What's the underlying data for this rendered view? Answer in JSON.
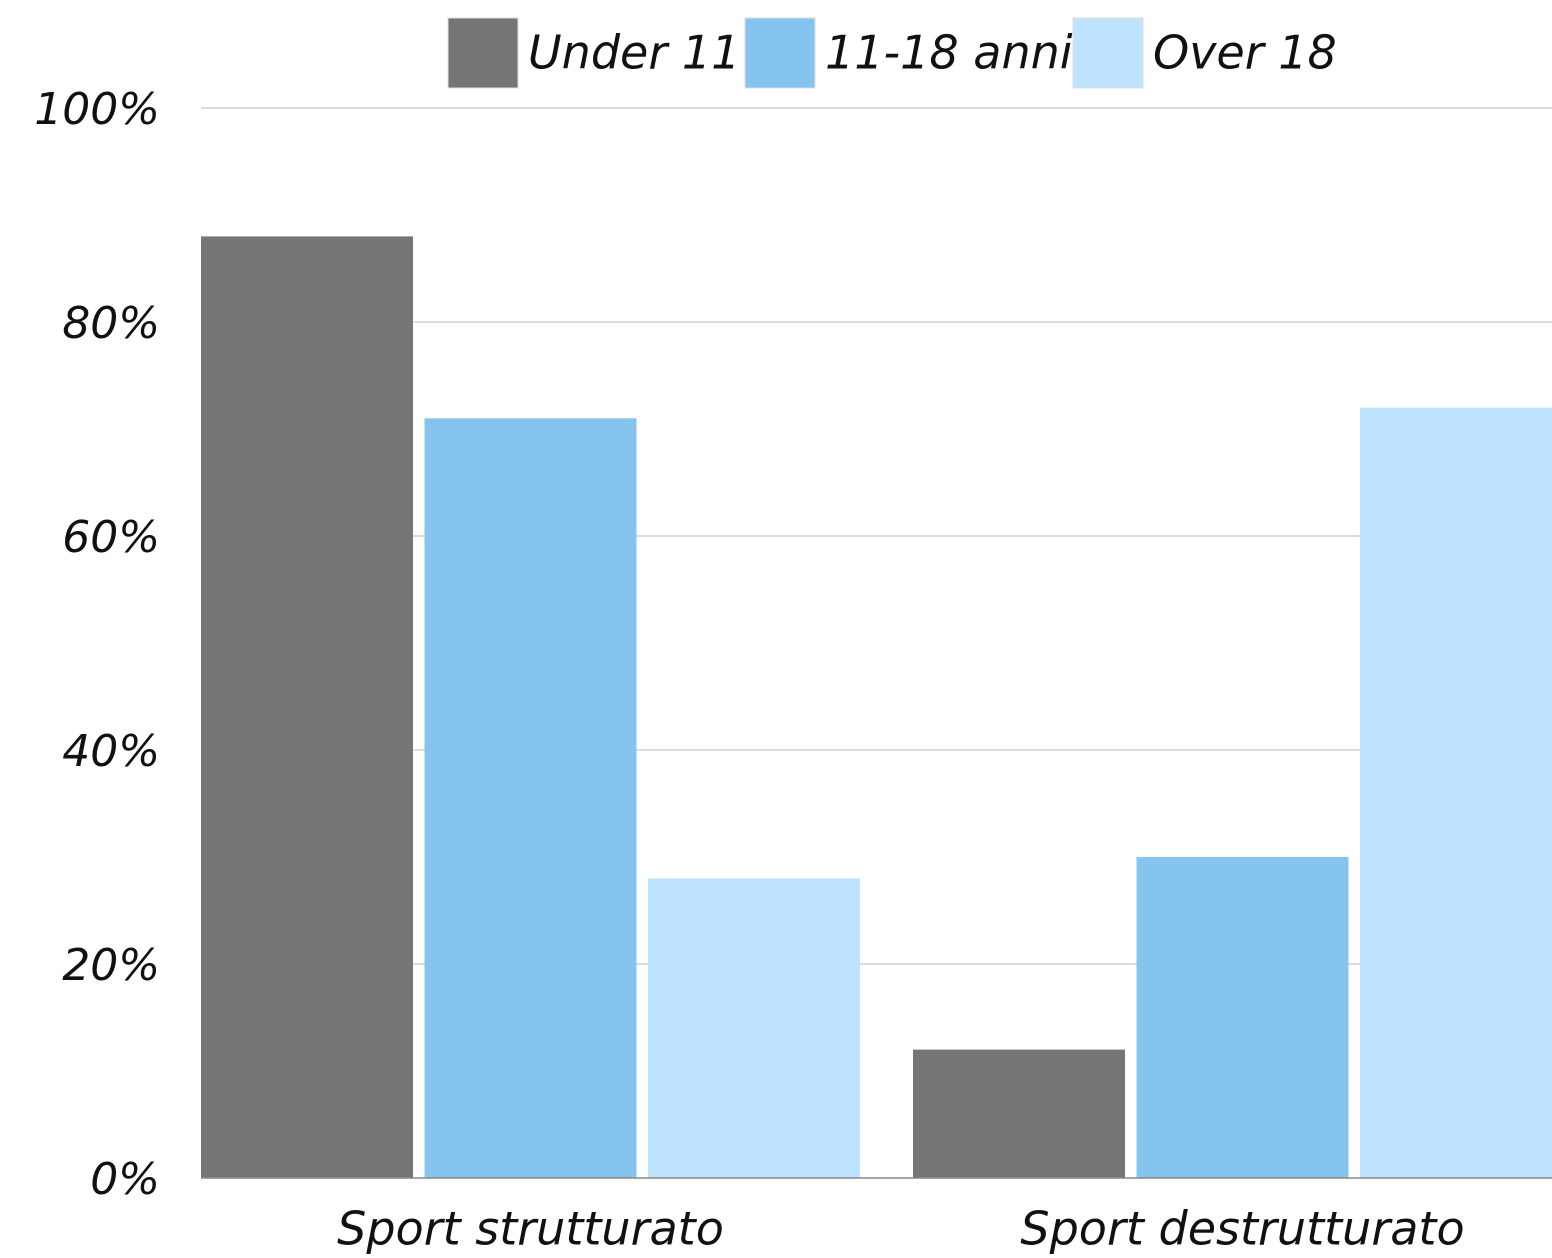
{
  "chart_data": {
    "type": "bar",
    "categories": [
      "Sport strutturato",
      "Sport destrutturato"
    ],
    "series": [
      {
        "name": "Under 11",
        "color": "#757575",
        "values": [
          88,
          12
        ]
      },
      {
        "name": "11-18 anni",
        "color": "#85c4ee",
        "values": [
          71,
          30
        ]
      },
      {
        "name": "Over 18",
        "color": "#bde3fe",
        "values": [
          28,
          72
        ]
      }
    ],
    "ylim": [
      0,
      100
    ],
    "yticks": [
      {
        "value": 0,
        "label": "0%"
      },
      {
        "value": 20,
        "label": "20%"
      },
      {
        "value": 40,
        "label": "40%"
      },
      {
        "value": 60,
        "label": "60%"
      },
      {
        "value": 80,
        "label": "80%"
      },
      {
        "value": 100,
        "label": "100%"
      }
    ],
    "grid": true,
    "legend": "top"
  }
}
